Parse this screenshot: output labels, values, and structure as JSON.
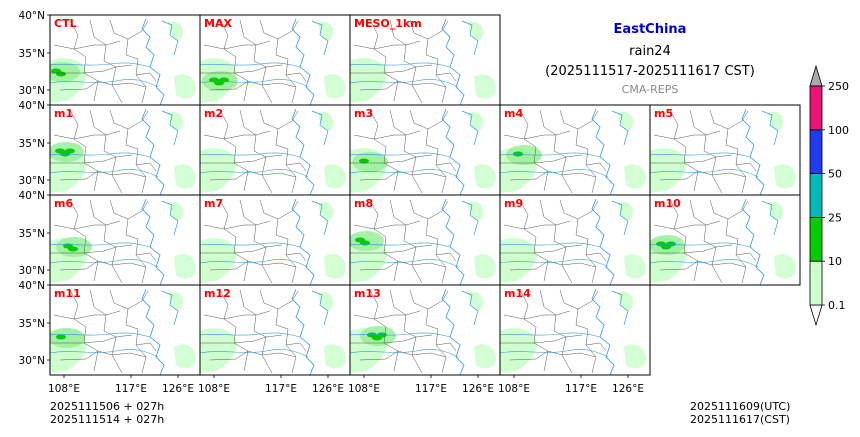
{
  "header": {
    "region": "EastChina",
    "variable": "rain24",
    "period": "(2025111517-2025111617 CST)",
    "model": "CMA-REPS"
  },
  "footer": {
    "init_utc": "2025111506  +  027h",
    "init_cst": "2025111514  +  027h",
    "valid_utc": "2025111609(UTC)",
    "valid_cst": "2025111617(CST)"
  },
  "chart_data": {
    "type": "heatmap",
    "description_level": "precipitation maps",
    "members": [
      "CTL",
      "MAX",
      "MESO_1km",
      "m1",
      "m2",
      "m3",
      "m4",
      "m5",
      "m6",
      "m7",
      "m8",
      "m9",
      "m10",
      "m11",
      "m12",
      "m13",
      "m14"
    ],
    "latitude_ticks": [
      "40°N",
      "35°N",
      "30°N"
    ],
    "longitude_ticks": [
      "108°E",
      "117°E",
      "126°E"
    ],
    "colorbar": {
      "levels": [
        "0.1",
        "10",
        "25",
        "50",
        "100",
        "250"
      ],
      "colors": [
        "#ccffcc",
        "#00cc00",
        "#00bbbb",
        "#1f3cf0",
        "#ee1177"
      ],
      "extend_color": "#aaaaaa"
    },
    "colors": {
      "label": "#ff0000",
      "frame": "#000000",
      "river": "#3399dd",
      "border": "#555555"
    }
  }
}
